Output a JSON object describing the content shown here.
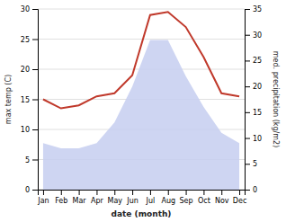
{
  "chart_data": {
    "type": "line",
    "categories": [
      "Jan",
      "Feb",
      "Mar",
      "Apr",
      "May",
      "Jun",
      "Jul",
      "Aug",
      "Sep",
      "Oct",
      "Nov",
      "Dec"
    ],
    "xlabel": "date (month)",
    "ylabel": "max temp (C)",
    "y2label": "med. precipitation (kg/m2)",
    "series": [
      {
        "type": "area",
        "axis": "y2",
        "color": "#c5cef0",
        "values": [
          9,
          8,
          8,
          9,
          13,
          20,
          29,
          29,
          22,
          16,
          11,
          9
        ]
      },
      {
        "type": "line",
        "color": "#c0392b",
        "values": [
          15,
          13.5,
          14,
          15.5,
          16,
          19,
          29,
          29.5,
          27,
          22,
          16,
          15.5
        ]
      }
    ],
    "ylim": [
      0,
      30
    ],
    "yticks": [
      0,
      5,
      10,
      15,
      20,
      25,
      30
    ],
    "y2lim": [
      0,
      35
    ],
    "y2ticks": [
      0,
      5,
      10,
      15,
      20,
      25,
      30,
      35
    ],
    "grid": true
  }
}
